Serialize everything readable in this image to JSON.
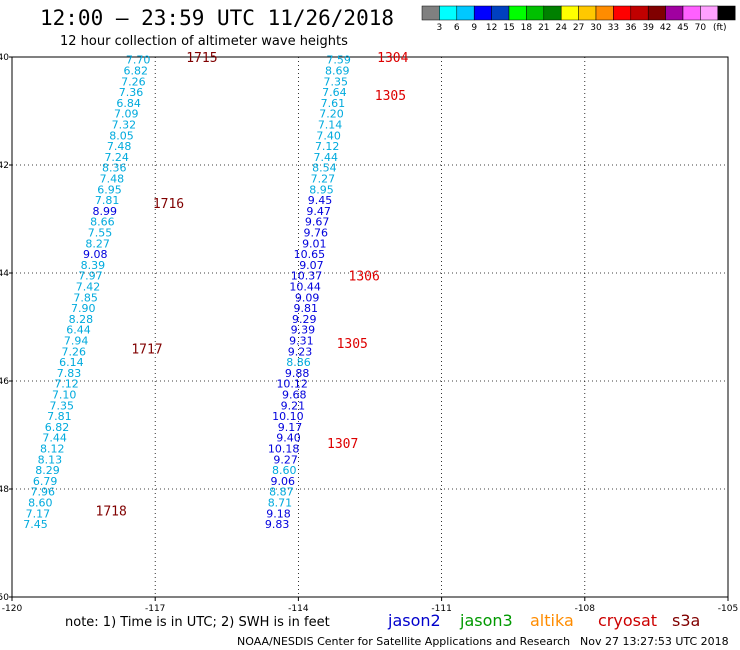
{
  "header": {
    "title": "12:00 – 23:59 UTC 11/26/2018",
    "subtitle": "12 hour collection of altimeter wave heights"
  },
  "colorbar": {
    "colors": [
      "#808080",
      "#00ffff",
      "#00c8ff",
      "#0000ff",
      "#0040c0",
      "#00ff00",
      "#00c000",
      "#008000",
      "#ffff00",
      "#ffc800",
      "#ff8c00",
      "#ff0000",
      "#c00000",
      "#800000",
      "#a000a0",
      "#ff60ff",
      "#ffa0ff",
      "#000000"
    ],
    "labels": [
      "3",
      "6",
      "9",
      "12",
      "15",
      "18",
      "21",
      "24",
      "27",
      "30",
      "33",
      "36",
      "39",
      "42",
      "45",
      "70"
    ],
    "unit": "(ft)"
  },
  "axes": {
    "lon_labels": [
      "-120",
      "-117",
      "-114",
      "-111",
      "-108",
      "-105"
    ],
    "lat_labels": [
      "40",
      "42",
      "44",
      "46",
      "48",
      "50"
    ]
  },
  "legend": {
    "note": "note:  1) Time is in UTC;  2) SWH is in feet",
    "satellites": [
      {
        "name": "jason2",
        "color": "#0000cc"
      },
      {
        "name": "jason3",
        "color": "#009900"
      },
      {
        "name": "altika",
        "color": "#ff8c00"
      },
      {
        "name": "cryosat",
        "color": "#cc0000"
      },
      {
        "name": "s3a",
        "color": "#800000"
      }
    ]
  },
  "footer": {
    "credit": "NOAA/NESDIS Center for Satellite Applications and Research",
    "timestamp": "Nov 27 13:27:53 UTC 2018"
  },
  "chart_data": {
    "type": "scatter",
    "lon_range": [
      -120,
      -105
    ],
    "lat_range": [
      40,
      50
    ],
    "grid": true,
    "tracks": [
      {
        "id": "west",
        "points": [
          {
            "lon": -117.1,
            "lat": 40.05,
            "v": "7.70",
            "c": "#00aadd"
          },
          {
            "lon": -117.15,
            "lat": 40.25,
            "v": "6.82",
            "c": "#00aadd"
          },
          {
            "lon": -117.2,
            "lat": 40.45,
            "v": "7.26",
            "c": "#00aadd"
          },
          {
            "lon": -117.25,
            "lat": 40.65,
            "v": "7.36",
            "c": "#00aadd"
          },
          {
            "lon": -117.3,
            "lat": 40.85,
            "v": "6.84",
            "c": "#00aadd"
          },
          {
            "lon": -117.35,
            "lat": 41.05,
            "v": "7.09",
            "c": "#00aadd"
          },
          {
            "lon": -117.4,
            "lat": 41.25,
            "v": "7.32",
            "c": "#00aadd"
          },
          {
            "lon": -117.45,
            "lat": 41.45,
            "v": "8.05",
            "c": "#00aadd"
          },
          {
            "lon": -117.5,
            "lat": 41.65,
            "v": "7.48",
            "c": "#00aadd"
          },
          {
            "lon": -117.55,
            "lat": 41.85,
            "v": "7.24",
            "c": "#00aadd"
          },
          {
            "lon": -117.6,
            "lat": 42.05,
            "v": "8.36",
            "c": "#00aadd"
          },
          {
            "lon": -117.65,
            "lat": 42.25,
            "v": "7.48",
            "c": "#00aadd"
          },
          {
            "lon": -117.7,
            "lat": 42.45,
            "v": "6.95",
            "c": "#00aadd"
          },
          {
            "lon": -117.75,
            "lat": 42.65,
            "v": "7.81",
            "c": "#00aadd"
          },
          {
            "lon": -117.8,
            "lat": 42.85,
            "v": "8.99",
            "c": "#0000dd"
          },
          {
            "lon": -117.85,
            "lat": 43.05,
            "v": "8.66",
            "c": "#00aadd"
          },
          {
            "lon": -117.9,
            "lat": 43.25,
            "v": "7.55",
            "c": "#00aadd"
          },
          {
            "lon": -117.95,
            "lat": 43.45,
            "v": "8.27",
            "c": "#00aadd"
          },
          {
            "lon": -118.0,
            "lat": 43.65,
            "v": "9.08",
            "c": "#0000dd"
          },
          {
            "lon": -118.05,
            "lat": 43.85,
            "v": "8.39",
            "c": "#00aadd"
          },
          {
            "lon": -118.1,
            "lat": 44.05,
            "v": "7.97",
            "c": "#00aadd"
          },
          {
            "lon": -118.15,
            "lat": 44.25,
            "v": "7.42",
            "c": "#00aadd"
          },
          {
            "lon": -118.2,
            "lat": 44.45,
            "v": "7.85",
            "c": "#00aadd"
          },
          {
            "lon": -118.25,
            "lat": 44.65,
            "v": "7.90",
            "c": "#00aadd"
          },
          {
            "lon": -118.3,
            "lat": 44.85,
            "v": "8.28",
            "c": "#00aadd"
          },
          {
            "lon": -118.35,
            "lat": 45.05,
            "v": "6.44",
            "c": "#00aadd"
          },
          {
            "lon": -118.4,
            "lat": 45.25,
            "v": "7.94",
            "c": "#00aadd"
          },
          {
            "lon": -118.45,
            "lat": 45.45,
            "v": "7.26",
            "c": "#00aadd"
          },
          {
            "lon": -118.5,
            "lat": 45.65,
            "v": "6.14",
            "c": "#00aadd"
          },
          {
            "lon": -118.55,
            "lat": 45.85,
            "v": "7.83",
            "c": "#00aadd"
          },
          {
            "lon": -118.6,
            "lat": 46.05,
            "v": "7.12",
            "c": "#00aadd"
          },
          {
            "lon": -118.65,
            "lat": 46.25,
            "v": "7.10",
            "c": "#00aadd"
          },
          {
            "lon": -118.7,
            "lat": 46.45,
            "v": "7.35",
            "c": "#00aadd"
          },
          {
            "lon": -118.75,
            "lat": 46.65,
            "v": "7.81",
            "c": "#00aadd"
          },
          {
            "lon": -118.8,
            "lat": 46.85,
            "v": "6.82",
            "c": "#00aadd"
          },
          {
            "lon": -118.85,
            "lat": 47.05,
            "v": "7.44",
            "c": "#00aadd"
          },
          {
            "lon": -118.9,
            "lat": 47.25,
            "v": "8.12",
            "c": "#00aadd"
          },
          {
            "lon": -118.95,
            "lat": 47.45,
            "v": "8.13",
            "c": "#00aadd"
          },
          {
            "lon": -119.0,
            "lat": 47.65,
            "v": "8.29",
            "c": "#00aadd"
          },
          {
            "lon": -119.05,
            "lat": 47.85,
            "v": "6.79",
            "c": "#00aadd"
          },
          {
            "lon": -119.1,
            "lat": 48.05,
            "v": "7.96",
            "c": "#00aadd"
          },
          {
            "lon": -119.15,
            "lat": 48.25,
            "v": "8.60",
            "c": "#00aadd"
          },
          {
            "lon": -119.2,
            "lat": 48.45,
            "v": "7.17",
            "c": "#00aadd"
          },
          {
            "lon": -119.25,
            "lat": 48.65,
            "v": "7.45",
            "c": "#00aadd"
          }
        ],
        "times": [
          {
            "lon": -116.35,
            "lat": 40.0,
            "t": "1715"
          },
          {
            "lon": -117.05,
            "lat": 42.7,
            "t": "1716"
          },
          {
            "lon": -117.5,
            "lat": 45.4,
            "t": "1717"
          },
          {
            "lon": -118.25,
            "lat": 48.4,
            "t": "1718"
          }
        ],
        "time_color": "#800000"
      },
      {
        "id": "east",
        "points": [
          {
            "lon": -112.9,
            "lat": 40.05,
            "v": "7.59",
            "c": "#00aadd"
          },
          {
            "lon": -112.93,
            "lat": 40.25,
            "v": "8.69",
            "c": "#00aadd"
          },
          {
            "lon": -112.96,
            "lat": 40.45,
            "v": "7.35",
            "c": "#00aadd"
          },
          {
            "lon": -112.99,
            "lat": 40.65,
            "v": "7.64",
            "c": "#00aadd"
          },
          {
            "lon": -113.02,
            "lat": 40.85,
            "v": "7.61",
            "c": "#00aadd"
          },
          {
            "lon": -113.05,
            "lat": 41.05,
            "v": "7.20",
            "c": "#00aadd"
          },
          {
            "lon": -113.08,
            "lat": 41.25,
            "v": "7.14",
            "c": "#00aadd"
          },
          {
            "lon": -113.11,
            "lat": 41.45,
            "v": "7.40",
            "c": "#00aadd"
          },
          {
            "lon": -113.14,
            "lat": 41.65,
            "v": "7.12",
            "c": "#00aadd"
          },
          {
            "lon": -113.17,
            "lat": 41.85,
            "v": "7.44",
            "c": "#00aadd"
          },
          {
            "lon": -113.2,
            "lat": 42.05,
            "v": "8.54",
            "c": "#00aadd"
          },
          {
            "lon": -113.23,
            "lat": 42.25,
            "v": "7.27",
            "c": "#00aadd"
          },
          {
            "lon": -113.26,
            "lat": 42.45,
            "v": "8.95",
            "c": "#00aadd"
          },
          {
            "lon": -113.29,
            "lat": 42.65,
            "v": "9.45",
            "c": "#0000dd"
          },
          {
            "lon": -113.32,
            "lat": 42.85,
            "v": "9.47",
            "c": "#0000dd"
          },
          {
            "lon": -113.35,
            "lat": 43.05,
            "v": "9.67",
            "c": "#0000dd"
          },
          {
            "lon": -113.38,
            "lat": 43.25,
            "v": "9.76",
            "c": "#0000dd"
          },
          {
            "lon": -113.41,
            "lat": 43.45,
            "v": "9.01",
            "c": "#0000dd"
          },
          {
            "lon": -113.44,
            "lat": 43.65,
            "v": "10.65",
            "c": "#0000dd"
          },
          {
            "lon": -113.47,
            "lat": 43.85,
            "v": "9.07",
            "c": "#0000dd"
          },
          {
            "lon": -113.5,
            "lat": 44.05,
            "v": "10.37",
            "c": "#0000dd"
          },
          {
            "lon": -113.53,
            "lat": 44.25,
            "v": "10.44",
            "c": "#0000dd"
          },
          {
            "lon": -113.56,
            "lat": 44.45,
            "v": "9.09",
            "c": "#0000dd"
          },
          {
            "lon": -113.59,
            "lat": 44.65,
            "v": "9.81",
            "c": "#0000dd"
          },
          {
            "lon": -113.62,
            "lat": 44.85,
            "v": "9.29",
            "c": "#0000dd"
          },
          {
            "lon": -113.65,
            "lat": 45.05,
            "v": "9.39",
            "c": "#0000dd"
          },
          {
            "lon": -113.68,
            "lat": 45.25,
            "v": "9.31",
            "c": "#0000dd"
          },
          {
            "lon": -113.71,
            "lat": 45.45,
            "v": "9.23",
            "c": "#0000dd"
          },
          {
            "lon": -113.74,
            "lat": 45.65,
            "v": "8.86",
            "c": "#00aadd"
          },
          {
            "lon": -113.77,
            "lat": 45.85,
            "v": "9.88",
            "c": "#0000dd"
          },
          {
            "lon": -113.8,
            "lat": 46.05,
            "v": "10.12",
            "c": "#0000dd"
          },
          {
            "lon": -113.83,
            "lat": 46.25,
            "v": "9.68",
            "c": "#0000dd"
          },
          {
            "lon": -113.86,
            "lat": 46.45,
            "v": "9.21",
            "c": "#0000dd"
          },
          {
            "lon": -113.89,
            "lat": 46.65,
            "v": "10.10",
            "c": "#0000dd"
          },
          {
            "lon": -113.92,
            "lat": 46.85,
            "v": "9.17",
            "c": "#0000dd"
          },
          {
            "lon": -113.95,
            "lat": 47.05,
            "v": "9.40",
            "c": "#0000dd"
          },
          {
            "lon": -113.98,
            "lat": 47.25,
            "v": "10.18",
            "c": "#0000dd"
          },
          {
            "lon": -114.01,
            "lat": 47.45,
            "v": "9.27",
            "c": "#0000dd"
          },
          {
            "lon": -114.04,
            "lat": 47.65,
            "v": "8.60",
            "c": "#00aadd"
          },
          {
            "lon": -114.07,
            "lat": 47.85,
            "v": "9.06",
            "c": "#0000dd"
          },
          {
            "lon": -114.1,
            "lat": 48.05,
            "v": "8.87",
            "c": "#00aadd"
          },
          {
            "lon": -114.13,
            "lat": 48.25,
            "v": "8.71",
            "c": "#00aadd"
          },
          {
            "lon": -114.16,
            "lat": 48.45,
            "v": "9.18",
            "c": "#0000dd"
          },
          {
            "lon": -114.19,
            "lat": 48.65,
            "v": "9.83",
            "c": "#0000dd"
          }
        ],
        "times": [
          {
            "lon": -112.35,
            "lat": 40.0,
            "t": "1304"
          },
          {
            "lon": -112.4,
            "lat": 40.7,
            "t": "1305"
          },
          {
            "lon": -112.95,
            "lat": 44.05,
            "t": "1306"
          },
          {
            "lon": -113.2,
            "lat": 45.3,
            "t": "1305"
          },
          {
            "lon": -113.4,
            "lat": 47.15,
            "t": "1307"
          }
        ],
        "time_color": "#dd0000"
      }
    ]
  }
}
